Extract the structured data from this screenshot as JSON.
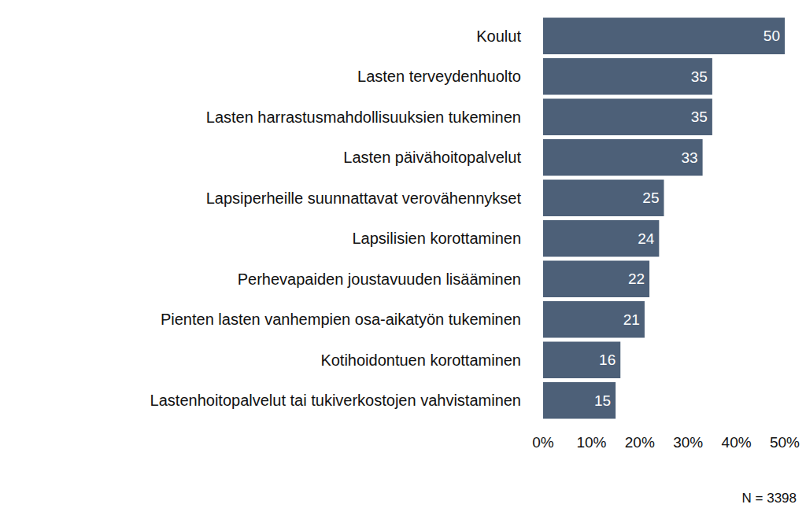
{
  "chart_data": {
    "type": "bar",
    "orientation": "horizontal",
    "categories": [
      "Koulut",
      "Lasten terveydenhuolto",
      "Lasten harrastusmahdollisuuksien tukeminen",
      "Lasten päivähoitopalvelut",
      "Lapsiperheille suunnattavat verovähennykset",
      "Lapsilisien korottaminen",
      "Perhevapaiden joustavuuden lisääminen",
      "Pienten lasten vanhempien osa-aikatyön tukeminen",
      "Kotihoidontuen korottaminen",
      "Lastenhoitopalvelut tai tukiverkostojen vahvistaminen"
    ],
    "values": [
      50,
      35,
      35,
      33,
      25,
      24,
      22,
      21,
      16,
      15
    ],
    "color": "#4d6078",
    "xlim": [
      0,
      50
    ],
    "xticks": [
      {
        "value": 0,
        "label": "0%"
      },
      {
        "value": 10,
        "label": "10%"
      },
      {
        "value": 20,
        "label": "20%"
      },
      {
        "value": 30,
        "label": "30%"
      },
      {
        "value": 40,
        "label": "40%"
      },
      {
        "value": 50,
        "label": "50%"
      }
    ],
    "grid": false,
    "data_labels": true,
    "annotations": [
      "N = 3398"
    ]
  }
}
